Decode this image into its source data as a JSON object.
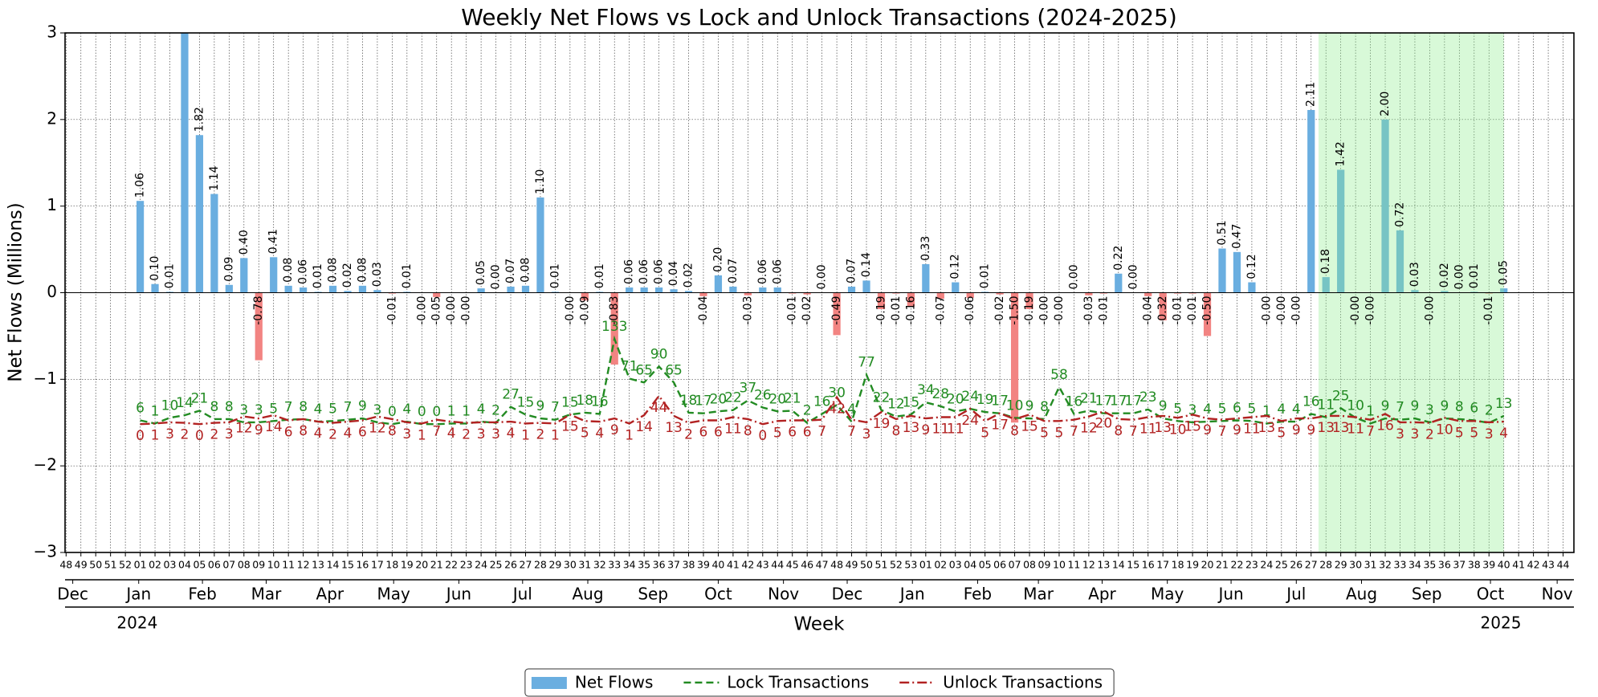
{
  "chart_data": {
    "type": "bar",
    "title": "Weekly Net Flows vs Lock and Unlock Transactions (2024-2025)",
    "x_label": "Week",
    "y_label": "Net Flows (Millions)",
    "categories": [
      "48",
      "49",
      "50",
      "51",
      "52",
      "01",
      "02",
      "03",
      "04",
      "05",
      "06",
      "07",
      "08",
      "09",
      "10",
      "11",
      "12",
      "13",
      "14",
      "15",
      "16",
      "17",
      "18",
      "19",
      "20",
      "21",
      "22",
      "23",
      "24",
      "25",
      "26",
      "27",
      "28",
      "29",
      "30",
      "31",
      "32",
      "33",
      "34",
      "35",
      "36",
      "37",
      "38",
      "39",
      "40",
      "41",
      "42",
      "43",
      "44",
      "45",
      "46",
      "47",
      "48",
      "49",
      "50",
      "51",
      "52",
      "53",
      "01",
      "02",
      "03",
      "04",
      "05",
      "06",
      "07",
      "08",
      "09",
      "10",
      "11",
      "12",
      "13",
      "14",
      "15",
      "16",
      "17",
      "18",
      "19",
      "20",
      "21",
      "22",
      "23",
      "24",
      "25",
      "26",
      "27",
      "28",
      "29",
      "30",
      "31",
      "32",
      "33",
      "34",
      "35",
      "36",
      "37",
      "38",
      "39",
      "40",
      "41",
      "42",
      "43",
      "44"
    ],
    "series": [
      {
        "name": "Net Flows",
        "type": "bar",
        "color": "#6aaee0",
        "negative_color": "#f28482",
        "values": [
          null,
          null,
          null,
          null,
          null,
          1.06,
          0.1,
          0.01,
          3.5,
          1.82,
          1.14,
          0.09,
          0.4,
          -0.78,
          0.41,
          0.08,
          0.06,
          0.01,
          0.08,
          0.02,
          0.08,
          0.03,
          -0.01,
          0.01,
          -0.001,
          -0.05,
          -0.001,
          -0.001,
          0.05,
          0,
          0.07,
          0.08,
          1.1,
          0.01,
          -0.001,
          -0.09,
          0.01,
          -0.83,
          0.06,
          0.06,
          0.06,
          0.04,
          0.02,
          -0.04,
          0.2,
          0.07,
          -0.03,
          0.06,
          0.06,
          -0.01,
          -0.02,
          0,
          -0.49,
          0.07,
          0.14,
          -0.19,
          -0.01,
          -0.16,
          0.33,
          -0.07,
          0.12,
          -0.06,
          0.01,
          -0.02,
          -1.5,
          -0.19,
          -0.001,
          -0.001,
          0,
          -0.03,
          -0.01,
          0.22,
          0,
          -0.04,
          -0.32,
          -0.01,
          -0.01,
          -0.5,
          0.51,
          0.47,
          0.12,
          -0.001,
          -0.001,
          -0.001,
          2.11,
          0.18,
          1.42,
          -0.001,
          -0.001,
          2.0,
          0.72,
          0.03,
          -0.001,
          0.02,
          0,
          0.01,
          -0.01,
          0.05,
          null,
          null,
          null,
          null
        ],
        "value_labels": [
          null,
          null,
          null,
          null,
          null,
          "1.06",
          "0.10",
          "0.01",
          null,
          "1.82",
          "1.14",
          "0.09",
          "0.40",
          "-0.78",
          "0.41",
          "0.08",
          "0.06",
          "0.01",
          "0.08",
          "0.02",
          "0.08",
          "0.03",
          "-0.01",
          "0.01",
          "-0.00",
          "-0.05",
          "-0.00",
          "-0.00",
          "0.05",
          "0.00",
          "0.07",
          "0.08",
          "1.10",
          "0.01",
          "-0.00",
          "-0.09",
          "0.01",
          "-0.83",
          "0.06",
          "0.06",
          "0.06",
          "0.04",
          "0.02",
          "-0.04",
          "0.20",
          "0.07",
          "-0.03",
          "0.06",
          "0.06",
          "-0.01",
          "-0.02",
          "0.00",
          "-0.49",
          "0.07",
          "0.14",
          "-0.19",
          "-0.01",
          "-0.16",
          "0.33",
          "-0.07",
          "0.12",
          "-0.06",
          "0.01",
          "-0.02",
          "-1.50",
          "-0.19",
          "-0.00",
          "-0.00",
          "0.00",
          "-0.03",
          "-0.01",
          "0.22",
          "0.00",
          "-0.04",
          "-0.32",
          "-0.01",
          "-0.01",
          "-0.50",
          "0.51",
          "0.47",
          "0.12",
          "-0.00",
          "-0.00",
          "-0.00",
          "2.11",
          "0.18",
          "1.42",
          "-0.00",
          "-0.00",
          "2.00",
          "0.72",
          "0.03",
          "-0.00",
          "0.02",
          "0.00",
          "0.01",
          "-0.01",
          "0.05",
          null,
          null,
          null,
          null
        ]
      },
      {
        "name": "Lock Transactions",
        "type": "line",
        "axis": "y2",
        "color": "#228b22",
        "dash": "dashed",
        "values": [
          null,
          null,
          null,
          null,
          null,
          6,
          1,
          10,
          14,
          21,
          8,
          8,
          3,
          3,
          5,
          7,
          8,
          4,
          5,
          7,
          9,
          3,
          0,
          4,
          0,
          0,
          1,
          1,
          4,
          2,
          27,
          15,
          9,
          7,
          15,
          18,
          16,
          133,
          71,
          65,
          90,
          65,
          18,
          17,
          20,
          22,
          37,
          26,
          20,
          21,
          2,
          16,
          30,
          4,
          77,
          22,
          12,
          15,
          34,
          28,
          20,
          24,
          19,
          17,
          10,
          9,
          8,
          58,
          16,
          21,
          17,
          17,
          17,
          23,
          9,
          5,
          3,
          4,
          5,
          6,
          5,
          1,
          4,
          4,
          16,
          11,
          25,
          10,
          1,
          9,
          7,
          9,
          3,
          9,
          8,
          6,
          2,
          13,
          null,
          null,
          null,
          null
        ]
      },
      {
        "name": "Unlock Transactions",
        "type": "line",
        "axis": "y2",
        "color": "#b22222",
        "dash": "dashdot",
        "values": [
          null,
          null,
          null,
          null,
          null,
          0,
          1,
          3,
          2,
          0,
          2,
          3,
          12,
          9,
          14,
          6,
          8,
          4,
          2,
          4,
          6,
          12,
          8,
          3,
          1,
          7,
          4,
          2,
          3,
          3,
          4,
          1,
          2,
          1,
          15,
          5,
          4,
          9,
          1,
          14,
          44,
          13,
          2,
          6,
          6,
          11,
          8,
          0,
          5,
          6,
          6,
          7,
          42,
          7,
          3,
          19,
          8,
          13,
          9,
          11,
          11,
          24,
          5,
          17,
          8,
          15,
          5,
          5,
          7,
          12,
          20,
          8,
          7,
          11,
          13,
          10,
          15,
          9,
          7,
          9,
          11,
          13,
          5,
          9,
          9,
          13,
          13,
          11,
          7,
          16,
          3,
          3,
          2,
          10,
          5,
          5,
          3,
          4,
          null,
          null,
          null,
          null
        ]
      }
    ],
    "ylim": [
      -3,
      3
    ],
    "yticks": [
      {
        "value": -3,
        "label": "−3"
      },
      {
        "value": -2,
        "label": "−2"
      },
      {
        "value": -1,
        "label": "−1"
      },
      0,
      1,
      2,
      3
    ],
    "y2lim": [
      -200,
      610
    ],
    "grid": true,
    "legend": "lower center",
    "highlight_span": {
      "from": 84.5,
      "to": 97,
      "color": "#90ee90"
    },
    "month_ticks": [
      {
        "value": 0.45,
        "label": "Dec"
      },
      {
        "value": 4.9,
        "label": "Jan"
      },
      {
        "value": 9.2,
        "label": "Feb"
      },
      {
        "value": 13.5,
        "label": "Mar"
      },
      {
        "value": 17.8,
        "label": "Apr"
      },
      {
        "value": 22.1,
        "label": "May"
      },
      {
        "value": 26.5,
        "label": "Jun"
      },
      {
        "value": 30.8,
        "label": "Jul"
      },
      {
        "value": 35.2,
        "label": "Aug"
      },
      {
        "value": 39.6,
        "label": "Sep"
      },
      {
        "value": 44.0,
        "label": "Oct"
      },
      {
        "value": 48.4,
        "label": "Nov"
      },
      {
        "value": 52.7,
        "label": "Dec"
      },
      {
        "value": 57.1,
        "label": "Jan"
      },
      {
        "value": 61.5,
        "label": "Feb"
      },
      {
        "value": 65.6,
        "label": "Mar"
      },
      {
        "value": 69.9,
        "label": "Apr"
      },
      {
        "value": 74.3,
        "label": "May"
      },
      {
        "value": 78.6,
        "label": "Jun"
      },
      {
        "value": 83.0,
        "label": "Jul"
      },
      {
        "value": 87.4,
        "label": "Aug"
      },
      {
        "value": 91.8,
        "label": "Sep"
      },
      {
        "value": 96.1,
        "label": "Oct"
      },
      {
        "value": 100.6,
        "label": "Nov"
      }
    ],
    "year_ticks": [
      {
        "value": 4.8,
        "label": "2024"
      },
      {
        "value": 96.8,
        "label": "2025"
      }
    ]
  }
}
